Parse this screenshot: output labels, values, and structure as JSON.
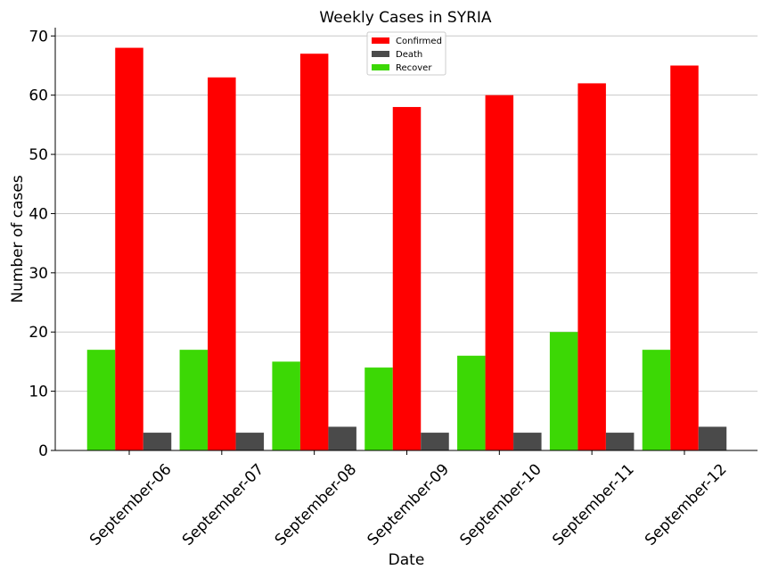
{
  "chart_data": {
    "type": "bar",
    "title": "Weekly Cases in SYRIA",
    "xlabel": "Date",
    "ylabel": "Number of cases",
    "categories": [
      "September-06",
      "September-07",
      "September-08",
      "September-09",
      "September-10",
      "September-11",
      "September-12"
    ],
    "series": [
      {
        "name": "Recover",
        "color": "#3cd805",
        "values": [
          17,
          17,
          15,
          14,
          16,
          20,
          17
        ]
      },
      {
        "name": "Confirmed",
        "color": "#ff0000",
        "values": [
          68,
          63,
          67,
          58,
          60,
          62,
          65
        ]
      },
      {
        "name": "Death",
        "color": "#4a4a4a",
        "values": [
          3,
          3,
          4,
          3,
          3,
          3,
          4
        ]
      }
    ],
    "legend_order": [
      "Confirmed",
      "Death",
      "Recover"
    ],
    "ylim": [
      0,
      71.4
    ],
    "yticks": [
      0,
      10,
      20,
      30,
      40,
      50,
      60,
      70
    ],
    "grid": "y",
    "legend_position": "top-center"
  }
}
